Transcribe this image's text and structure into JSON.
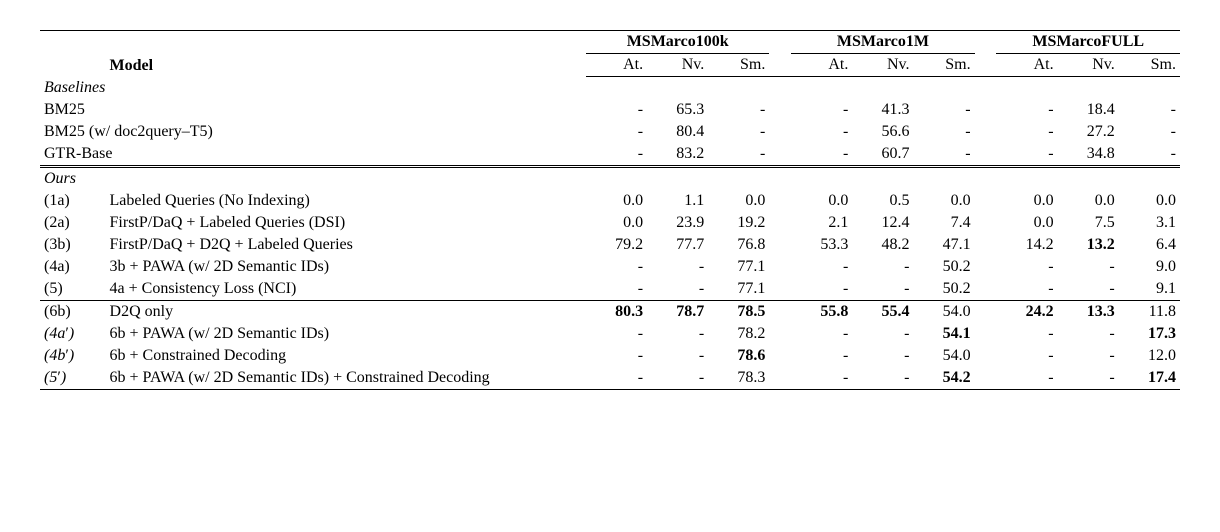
{
  "datasets": [
    "MSMarco100k",
    "MSMarco1M",
    "MSMarcoFULL"
  ],
  "subcols": [
    "At.",
    "Nv.",
    "Sm."
  ],
  "model_header": "Model",
  "sections": {
    "baselines": "Baselines",
    "ours": "Ours"
  },
  "baselines": [
    {
      "idx": "",
      "name": "BM25",
      "vals": [
        "-",
        "65.3",
        "-",
        "-",
        "41.3",
        "-",
        "-",
        "18.4",
        "-"
      ],
      "bold": [
        false,
        false,
        false,
        false,
        false,
        false,
        false,
        false,
        false
      ]
    },
    {
      "idx": "",
      "name": "BM25 (w/ doc2query–T5)",
      "vals": [
        "-",
        "80.4",
        "-",
        "-",
        "56.6",
        "-",
        "-",
        "27.2",
        "-"
      ],
      "bold": [
        false,
        false,
        false,
        false,
        false,
        false,
        false,
        false,
        false
      ]
    },
    {
      "idx": "",
      "name": "GTR-Base",
      "vals": [
        "-",
        "83.2",
        "-",
        "-",
        "60.7",
        "-",
        "-",
        "34.8",
        "-"
      ],
      "bold": [
        false,
        false,
        false,
        false,
        false,
        false,
        false,
        false,
        false
      ]
    }
  ],
  "ours_a": [
    {
      "idx": "(1a)",
      "name": "Labeled Queries (No Indexing)",
      "vals": [
        "0.0",
        "1.1",
        "0.0",
        "0.0",
        "0.5",
        "0.0",
        "0.0",
        "0.0",
        "0.0"
      ],
      "bold": [
        false,
        false,
        false,
        false,
        false,
        false,
        false,
        false,
        false
      ]
    },
    {
      "idx": "(2a)",
      "name": "FirstP/DaQ + Labeled Queries (DSI)",
      "vals": [
        "0.0",
        "23.9",
        "19.2",
        "2.1",
        "12.4",
        "7.4",
        "0.0",
        "7.5",
        "3.1"
      ],
      "bold": [
        false,
        false,
        false,
        false,
        false,
        false,
        false,
        false,
        false
      ]
    },
    {
      "idx": "(3b)",
      "name": "FirstP/DaQ + D2Q + Labeled Queries",
      "vals": [
        "79.2",
        "77.7",
        "76.8",
        "53.3",
        "48.2",
        "47.1",
        "14.2",
        "13.2",
        "6.4"
      ],
      "bold": [
        false,
        false,
        false,
        false,
        false,
        false,
        false,
        true,
        false
      ]
    },
    {
      "idx": "(4a)",
      "name": "3b + PAWA (w/ 2D Semantic IDs)",
      "vals": [
        "-",
        "-",
        "77.1",
        "-",
        "-",
        "50.2",
        "-",
        "-",
        "9.0"
      ],
      "bold": [
        false,
        false,
        false,
        false,
        false,
        false,
        false,
        false,
        false
      ]
    },
    {
      "idx": "(5)",
      "name": "4a + Consistency Loss (NCI)",
      "vals": [
        "-",
        "-",
        "77.1",
        "-",
        "-",
        "50.2",
        "-",
        "-",
        "9.1"
      ],
      "bold": [
        false,
        false,
        false,
        false,
        false,
        false,
        false,
        false,
        false
      ]
    }
  ],
  "ours_b": [
    {
      "idx": "(6b)",
      "name": "D2Q only",
      "vals": [
        "80.3",
        "78.7",
        "78.5",
        "55.8",
        "55.4",
        "54.0",
        "24.2",
        "13.3",
        "11.8"
      ],
      "bold": [
        true,
        true,
        true,
        true,
        true,
        false,
        true,
        true,
        false
      ]
    },
    {
      "idx": "(4a′)",
      "name": "6b + PAWA (w/ 2D Semantic IDs)",
      "vals": [
        "-",
        "-",
        "78.2",
        "-",
        "-",
        "54.1",
        "-",
        "-",
        "17.3"
      ],
      "bold": [
        false,
        false,
        false,
        false,
        false,
        true,
        false,
        false,
        true
      ]
    },
    {
      "idx": "(4b′)",
      "name": "6b + Constrained Decoding",
      "vals": [
        "-",
        "-",
        "78.6",
        "-",
        "-",
        "54.0",
        "-",
        "-",
        "12.0"
      ],
      "bold": [
        false,
        false,
        true,
        false,
        false,
        false,
        false,
        false,
        false
      ]
    },
    {
      "idx": "(5′)",
      "name": "6b + PAWA (w/ 2D Semantic IDs) + Constrained Decoding",
      "vals": [
        "-",
        "-",
        "78.3",
        "-",
        "-",
        "54.2",
        "-",
        "-",
        "17.4"
      ],
      "bold": [
        false,
        false,
        false,
        false,
        false,
        true,
        false,
        false,
        true
      ]
    }
  ]
}
